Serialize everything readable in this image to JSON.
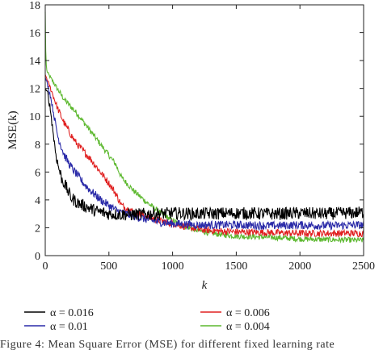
{
  "chart_data": {
    "type": "line",
    "xlabel": "k",
    "ylabel": "MSE(k)",
    "xlim": [
      0,
      2500
    ],
    "ylim": [
      0,
      18
    ],
    "xticks": [
      0,
      500,
      1000,
      1500,
      2000,
      2500
    ],
    "yticks": [
      0,
      2,
      4,
      6,
      8,
      10,
      12,
      14,
      16,
      18
    ],
    "grid": false,
    "legend_position": "bottom, below plot, two columns",
    "series": [
      {
        "name": "α = 0.016",
        "color": "#000000",
        "x": [
          0,
          20,
          40,
          60,
          80,
          100,
          130,
          160,
          200,
          250,
          300,
          350,
          400,
          450,
          500,
          600,
          700,
          800,
          900,
          1000,
          1200,
          1500,
          1800,
          2000,
          2200,
          2500
        ],
        "y": [
          12.0,
          11.6,
          10.5,
          9.0,
          7.5,
          6.5,
          5.5,
          5.0,
          4.2,
          3.8,
          3.6,
          3.4,
          3.2,
          3.1,
          3.0,
          2.95,
          2.95,
          3.0,
          3.0,
          3.05,
          3.0,
          3.05,
          3.0,
          3.05,
          3.0,
          3.1
        ],
        "noise": 0.45
      },
      {
        "name": "α = 0.01",
        "color": "#2a2aa8",
        "x": [
          0,
          20,
          40,
          60,
          80,
          100,
          150,
          200,
          250,
          300,
          350,
          400,
          450,
          500,
          550,
          600,
          700,
          800,
          900,
          1000,
          1200,
          1500,
          1800,
          2000,
          2200,
          2500
        ],
        "y": [
          12.8,
          12.2,
          11.5,
          10.5,
          9.5,
          8.5,
          7.2,
          6.4,
          5.8,
          5.2,
          4.7,
          4.3,
          3.9,
          3.6,
          3.3,
          3.1,
          2.8,
          2.6,
          2.4,
          2.3,
          2.2,
          2.2,
          2.15,
          2.2,
          2.15,
          2.2
        ],
        "noise": 0.3
      },
      {
        "name": "α = 0.006",
        "color": "#e02020",
        "x": [
          0,
          20,
          50,
          80,
          100,
          150,
          200,
          250,
          300,
          350,
          400,
          450,
          500,
          550,
          600,
          700,
          800,
          900,
          1000,
          1100,
          1200,
          1300,
          1500,
          1800,
          2000,
          2200,
          2500
        ],
        "y": [
          13.0,
          12.5,
          11.8,
          11.0,
          10.5,
          9.5,
          8.7,
          8.0,
          7.5,
          7.0,
          6.4,
          5.8,
          5.2,
          4.5,
          3.6,
          3.1,
          2.8,
          2.5,
          2.3,
          2.1,
          1.9,
          1.8,
          1.7,
          1.65,
          1.6,
          1.6,
          1.6
        ],
        "noise": 0.25
      },
      {
        "name": "α = 0.004",
        "color": "#5cb82e",
        "x": [
          0,
          5,
          12,
          20,
          40,
          60,
          100,
          150,
          200,
          250,
          300,
          350,
          400,
          450,
          500,
          550,
          600,
          700,
          800,
          900,
          1000,
          1100,
          1200,
          1300,
          1500,
          1800,
          2000,
          2200,
          2500
        ],
        "y": [
          17.5,
          14.0,
          13.3,
          13.1,
          12.8,
          12.5,
          11.9,
          11.2,
          10.7,
          10.2,
          9.6,
          9.0,
          8.4,
          7.8,
          7.2,
          6.6,
          5.6,
          4.6,
          3.8,
          3.1,
          2.5,
          2.1,
          1.8,
          1.6,
          1.4,
          1.3,
          1.2,
          1.15,
          1.1
        ],
        "noise": 0.2
      }
    ]
  },
  "figure": {
    "caption": "Figure 4: Mean Square Error (MSE) for different fixed learning rate"
  }
}
